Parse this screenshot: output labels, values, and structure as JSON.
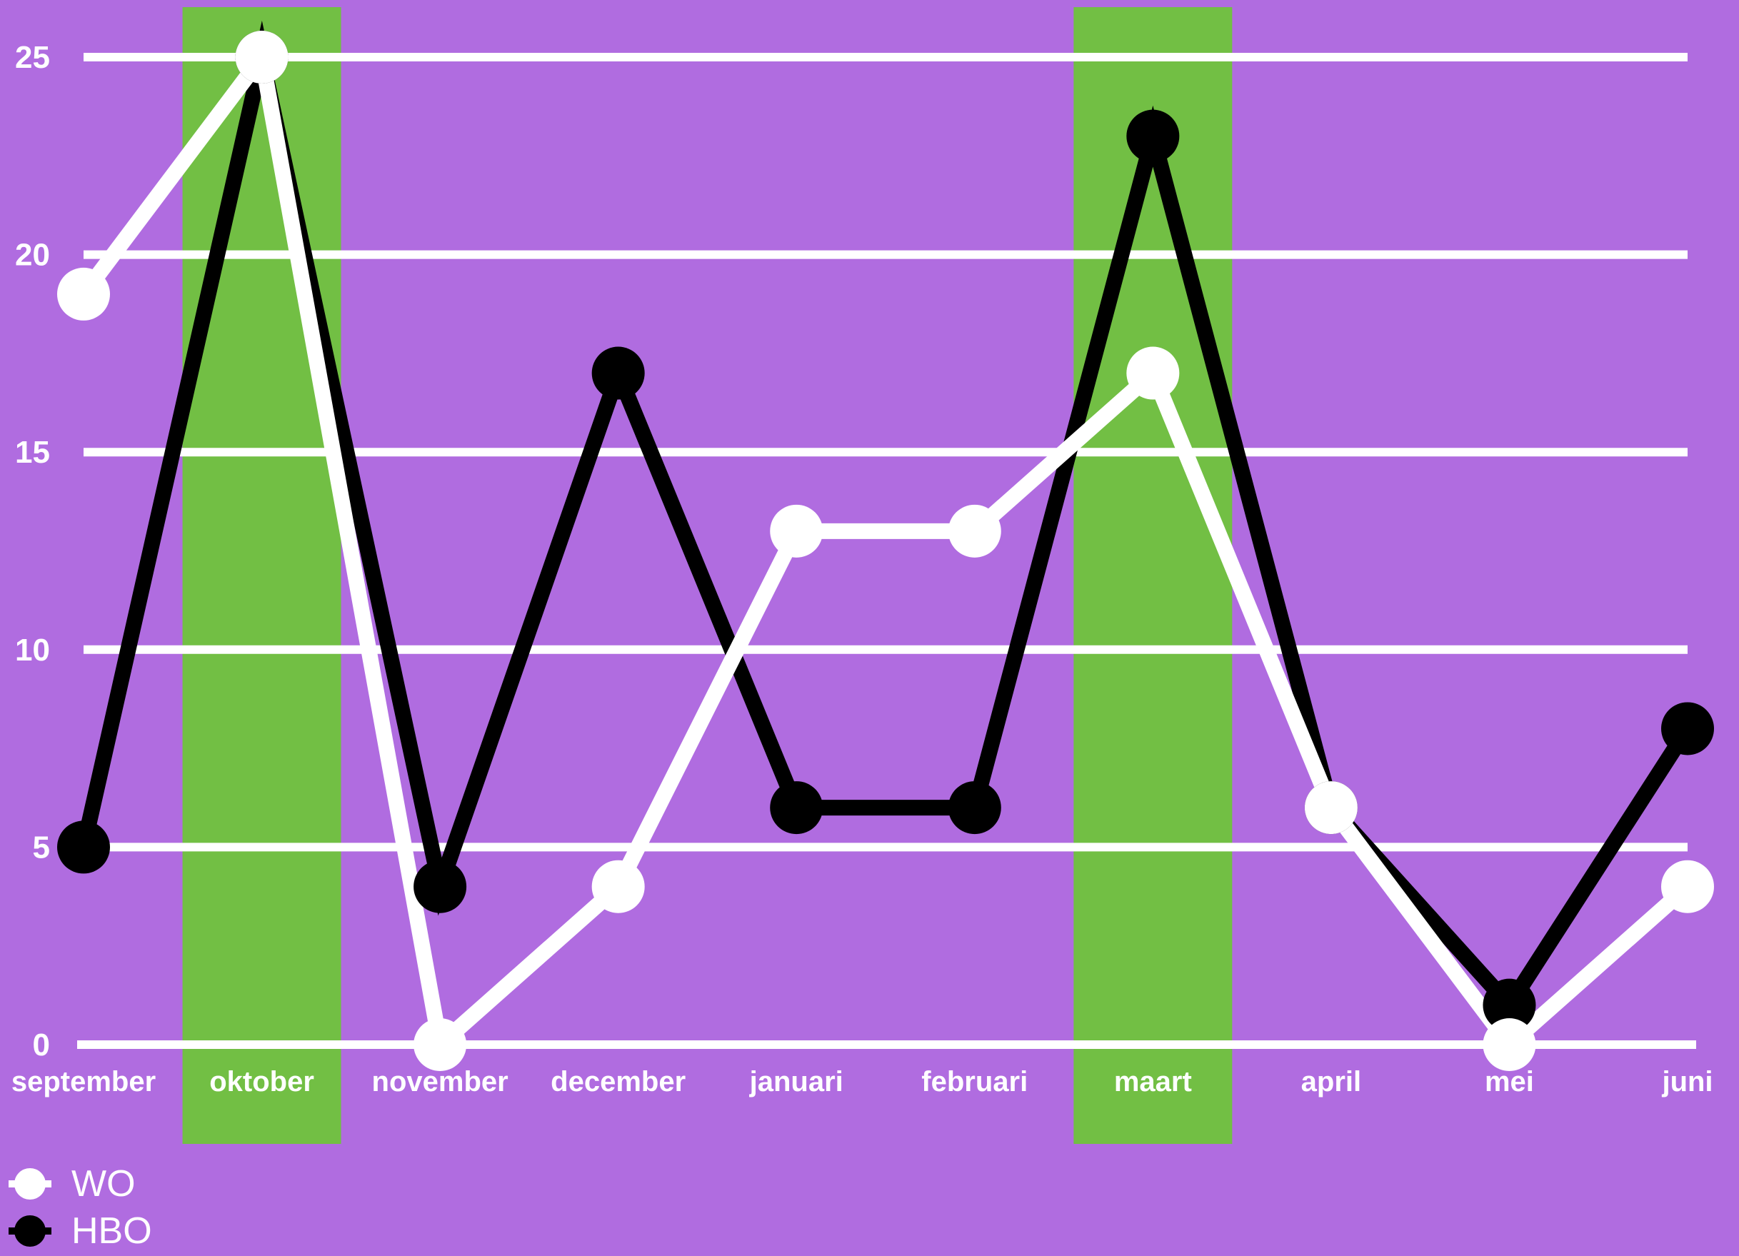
{
  "chart_data": {
    "type": "line",
    "categories": [
      "september",
      "oktober",
      "november",
      "december",
      "januari",
      "februari",
      "maart",
      "april",
      "mei",
      "juni"
    ],
    "highlighted_categories": [
      "oktober",
      "maart"
    ],
    "series": [
      {
        "name": "WO",
        "color": "#ffffff",
        "values": [
          19,
          25,
          0,
          4,
          13,
          13,
          17,
          6,
          0,
          4
        ]
      },
      {
        "name": "HBO",
        "color": "#000000",
        "values": [
          5,
          25,
          4,
          17,
          6,
          6,
          23,
          6,
          1,
          8
        ]
      }
    ],
    "yticks": [
      "0",
      "5",
      "10",
      "15",
      "20",
      "25"
    ],
    "ylim": [
      0,
      25
    ],
    "grid": true,
    "legend": "bottom-left",
    "colors": {
      "background": "#b06ce0",
      "highlight": "#72bf44",
      "grid": "#ffffff"
    }
  }
}
